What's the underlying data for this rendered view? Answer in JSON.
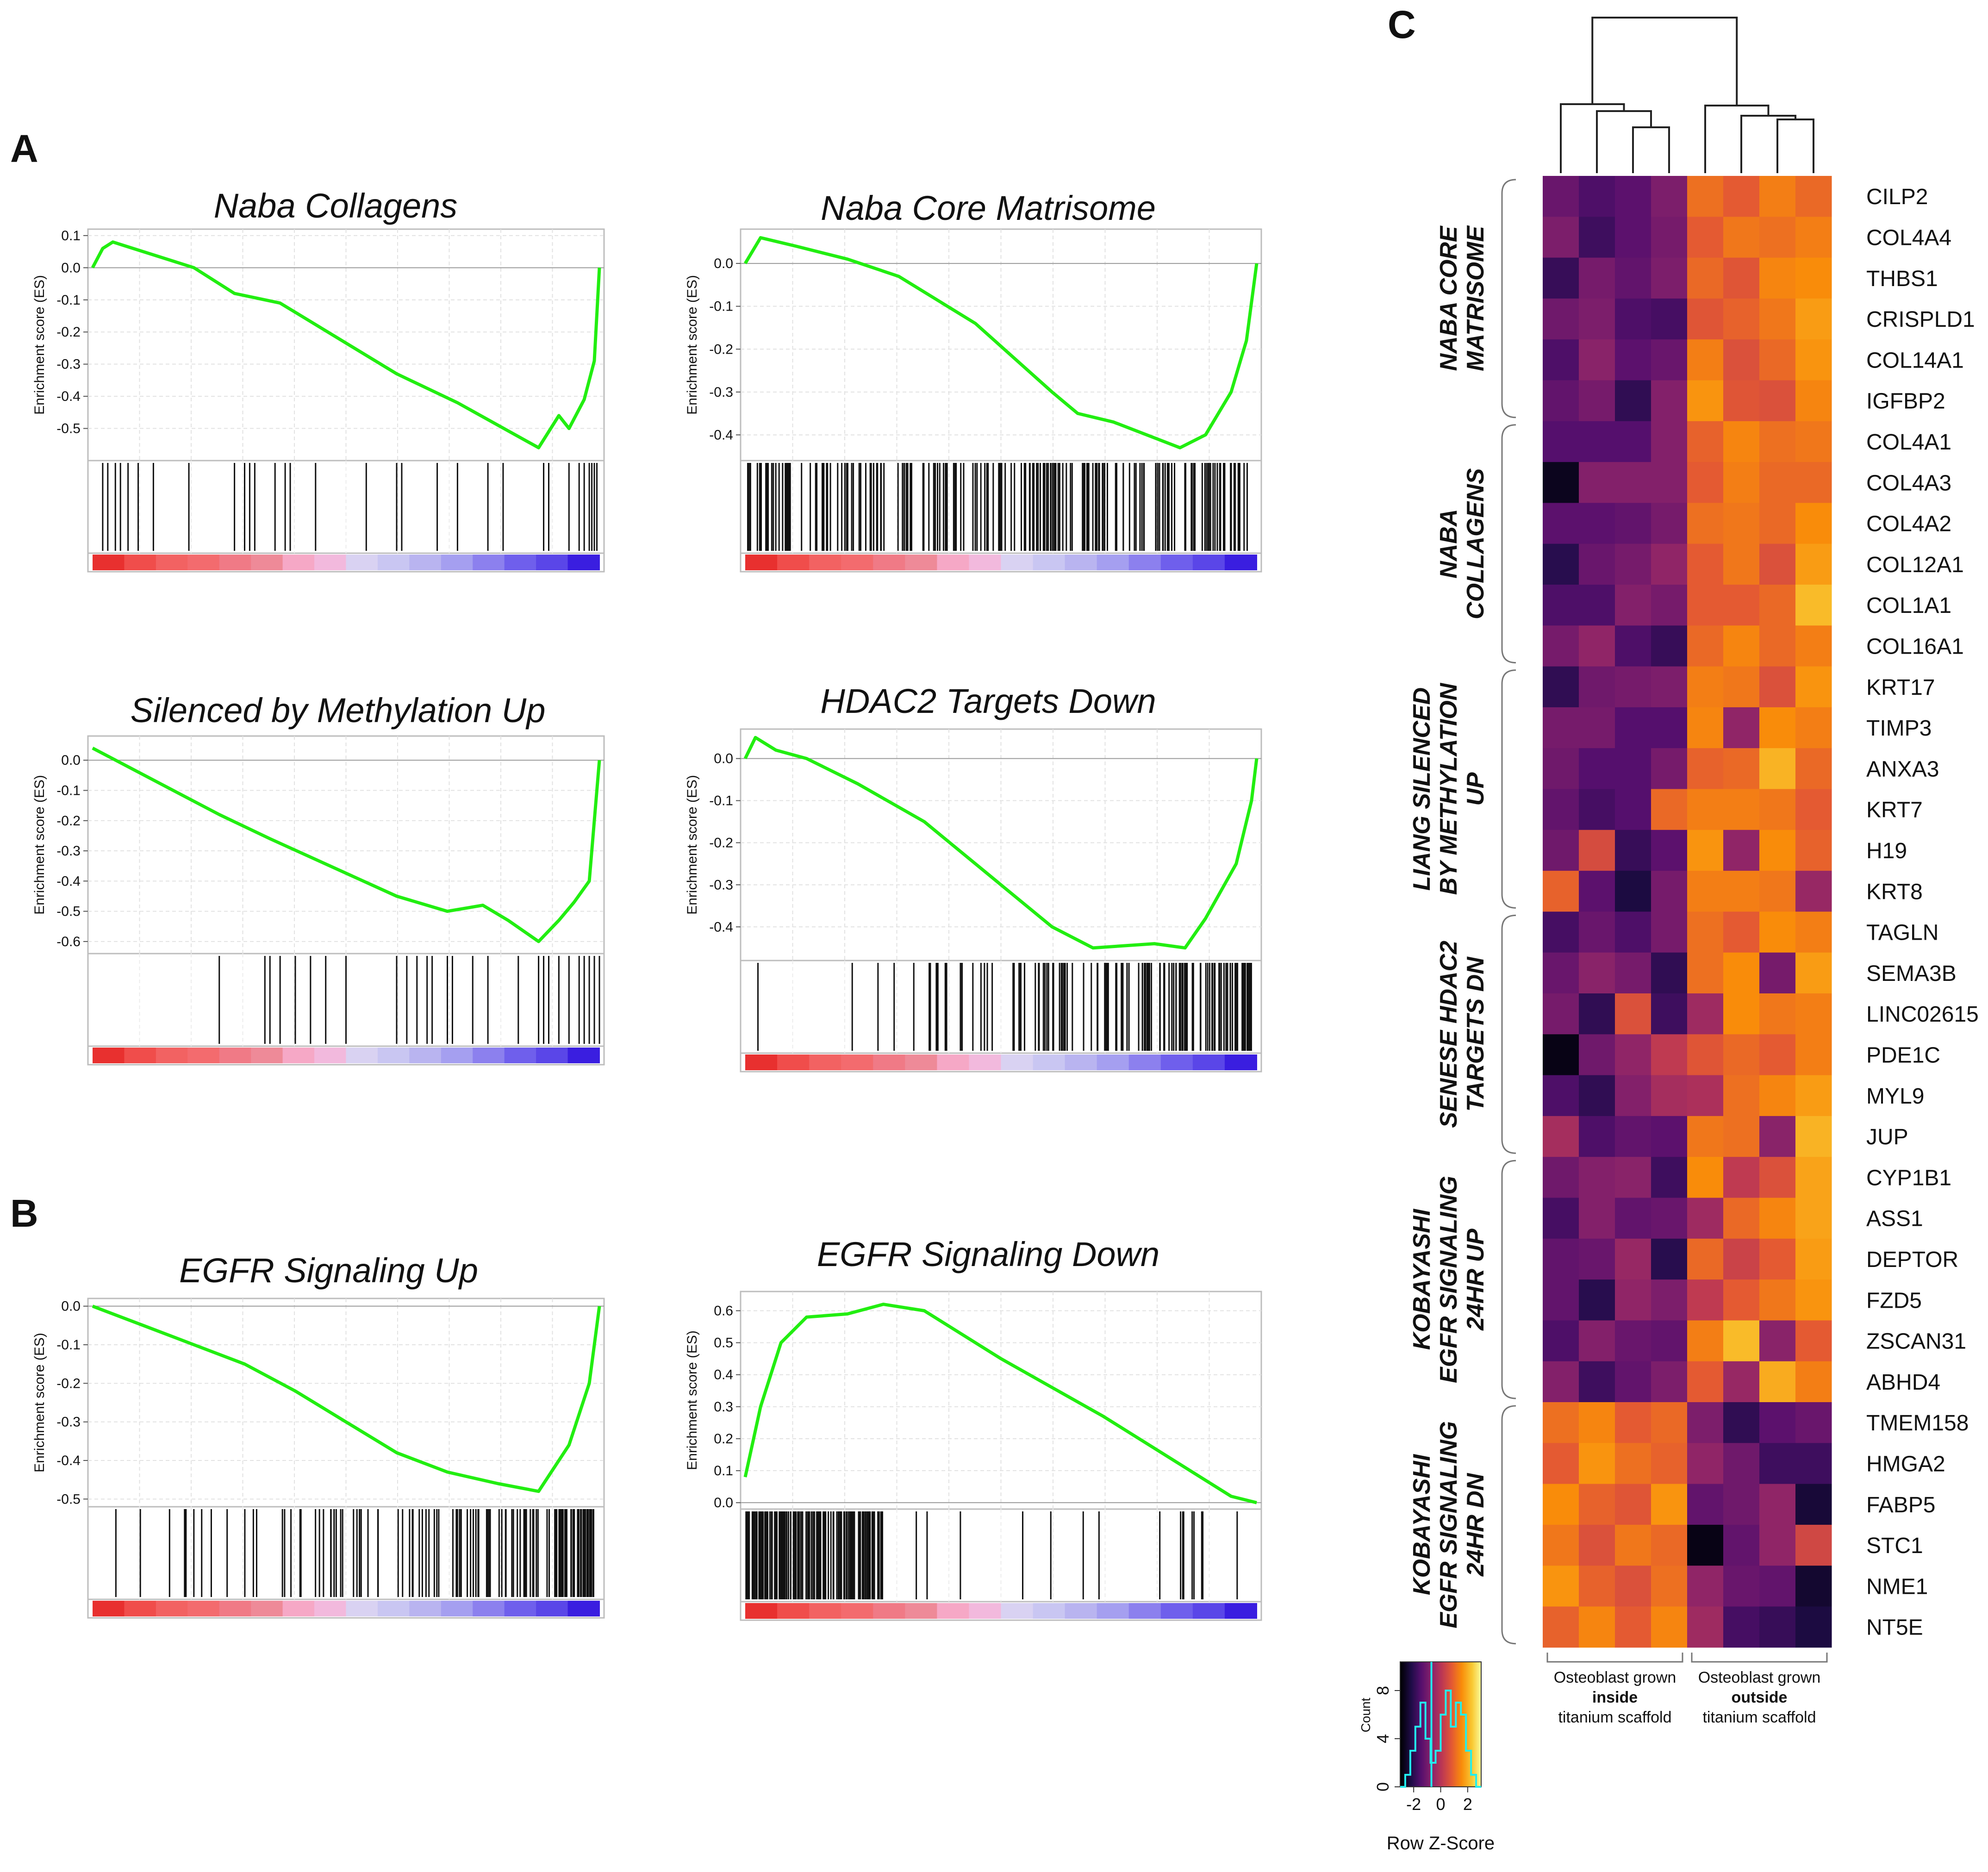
{
  "panel_labels": {
    "A": "A",
    "B": "B",
    "C": "C"
  },
  "gsea_common": {
    "ylabel": "Enrichment score (ES)",
    "curve_color": "#22ee11"
  },
  "chart_data": [
    {
      "type": "line",
      "id": "naba-collagens",
      "panel": "A",
      "title": "Naba Collagens",
      "ylabel": "Enrichment score (ES)",
      "ylim": [
        -0.6,
        0.12
      ],
      "yticks": [
        "0.1",
        "0.0",
        "-0.1",
        "-0.2",
        "-0.3",
        "-0.4",
        "-0.5"
      ],
      "curve": [
        [
          0,
          0
        ],
        [
          0.02,
          0.06
        ],
        [
          0.04,
          0.08
        ],
        [
          0.2,
          0.0
        ],
        [
          0.28,
          -0.08
        ],
        [
          0.37,
          -0.11
        ],
        [
          0.6,
          -0.33
        ],
        [
          0.72,
          -0.42
        ],
        [
          0.88,
          -0.56
        ],
        [
          0.92,
          -0.46
        ],
        [
          0.94,
          -0.5
        ],
        [
          0.97,
          -0.41
        ],
        [
          0.99,
          -0.29
        ],
        [
          1.0,
          0
        ]
      ],
      "hits": [
        0.02,
        0.03,
        0.045,
        0.055,
        0.07,
        0.09,
        0.12,
        0.19,
        0.28,
        0.3,
        0.31,
        0.32,
        0.36,
        0.38,
        0.39,
        0.44,
        0.54,
        0.6,
        0.61,
        0.68,
        0.72,
        0.78,
        0.81,
        0.89,
        0.9,
        0.94,
        0.96,
        0.97,
        0.98,
        0.985,
        0.99,
        0.995
      ]
    },
    {
      "type": "line",
      "id": "naba-core-matrisome",
      "panel": "A",
      "title": "Naba Core Matrisome",
      "ylabel": "Enrichment score (ES)",
      "ylim": [
        -0.46,
        0.08
      ],
      "yticks": [
        "0.0",
        "-0.1",
        "-0.2",
        "-0.3",
        "-0.4"
      ],
      "curve": [
        [
          0,
          0
        ],
        [
          0.03,
          0.06
        ],
        [
          0.1,
          0.04
        ],
        [
          0.2,
          0.01
        ],
        [
          0.3,
          -0.03
        ],
        [
          0.45,
          -0.14
        ],
        [
          0.6,
          -0.3
        ],
        [
          0.65,
          -0.35
        ],
        [
          0.72,
          -0.37
        ],
        [
          0.85,
          -0.43
        ],
        [
          0.9,
          -0.4
        ],
        [
          0.95,
          -0.3
        ],
        [
          0.98,
          -0.18
        ],
        [
          1.0,
          0
        ]
      ],
      "hits_density": "dense"
    },
    {
      "type": "line",
      "id": "silenced-by-methylation-up",
      "panel": "A",
      "title": "Silenced by Methylation Up",
      "ylabel": "Enrichment score (ES)",
      "ylim": [
        -0.64,
        0.08
      ],
      "yticks": [
        "0.0",
        "-0.1",
        "-0.2",
        "-0.3",
        "-0.4",
        "-0.5",
        "-0.6"
      ],
      "curve": [
        [
          0,
          0.04
        ],
        [
          0.25,
          -0.18
        ],
        [
          0.35,
          -0.26
        ],
        [
          0.6,
          -0.45
        ],
        [
          0.7,
          -0.5
        ],
        [
          0.77,
          -0.48
        ],
        [
          0.82,
          -0.53
        ],
        [
          0.88,
          -0.6
        ],
        [
          0.92,
          -0.53
        ],
        [
          0.95,
          -0.47
        ],
        [
          0.98,
          -0.4
        ],
        [
          0.99,
          -0.2
        ],
        [
          1.0,
          0
        ]
      ],
      "hits": [
        0.25,
        0.34,
        0.35,
        0.37,
        0.4,
        0.43,
        0.46,
        0.5,
        0.6,
        0.62,
        0.64,
        0.66,
        0.67,
        0.7,
        0.71,
        0.75,
        0.78,
        0.84,
        0.88,
        0.89,
        0.9,
        0.92,
        0.94,
        0.96,
        0.97,
        0.98,
        0.99,
        1.0
      ]
    },
    {
      "type": "line",
      "id": "hdac2-targets-down",
      "panel": "A",
      "title": "HDAC2 Targets Down",
      "ylabel": "Enrichment score (ES)",
      "ylim": [
        -0.48,
        0.07
      ],
      "yticks": [
        "0.0",
        "-0.1",
        "-0.2",
        "-0.3",
        "-0.4"
      ],
      "curve": [
        [
          0,
          0
        ],
        [
          0.02,
          0.05
        ],
        [
          0.06,
          0.02
        ],
        [
          0.12,
          0.0
        ],
        [
          0.22,
          -0.06
        ],
        [
          0.35,
          -0.15
        ],
        [
          0.5,
          -0.3
        ],
        [
          0.6,
          -0.4
        ],
        [
          0.68,
          -0.45
        ],
        [
          0.8,
          -0.44
        ],
        [
          0.86,
          -0.45
        ],
        [
          0.9,
          -0.38
        ],
        [
          0.96,
          -0.25
        ],
        [
          0.99,
          -0.1
        ],
        [
          1.0,
          0
        ]
      ],
      "hits_density": "medium"
    },
    {
      "type": "line",
      "id": "egfr-signaling-up",
      "panel": "B",
      "title": "EGFR Signaling Up",
      "ylabel": "Enrichment score (ES)",
      "ylim": [
        -0.52,
        0.02
      ],
      "yticks": [
        "0.0",
        "-0.1",
        "-0.2",
        "-0.3",
        "-0.4",
        "-0.5"
      ],
      "curve": [
        [
          0,
          0
        ],
        [
          0.1,
          -0.05
        ],
        [
          0.2,
          -0.1
        ],
        [
          0.3,
          -0.15
        ],
        [
          0.4,
          -0.22
        ],
        [
          0.5,
          -0.3
        ],
        [
          0.6,
          -0.38
        ],
        [
          0.7,
          -0.43
        ],
        [
          0.8,
          -0.46
        ],
        [
          0.88,
          -0.48
        ],
        [
          0.9,
          -0.44
        ],
        [
          0.94,
          -0.36
        ],
        [
          0.98,
          -0.2
        ],
        [
          1.0,
          0
        ]
      ],
      "hits_density": "medium"
    },
    {
      "type": "line",
      "id": "egfr-signaling-down",
      "panel": "B",
      "title": "EGFR Signaling Down",
      "ylabel": "Enrichment score (ES)",
      "ylim": [
        -0.02,
        0.66
      ],
      "yticks": [
        "0.6",
        "0.5",
        "0.4",
        "0.3",
        "0.2",
        "0.1",
        "0.0"
      ],
      "curve": [
        [
          0,
          0.08
        ],
        [
          0.03,
          0.3
        ],
        [
          0.07,
          0.5
        ],
        [
          0.12,
          0.58
        ],
        [
          0.2,
          0.59
        ],
        [
          0.27,
          0.62
        ],
        [
          0.35,
          0.6
        ],
        [
          0.5,
          0.45
        ],
        [
          0.7,
          0.27
        ],
        [
          0.85,
          0.12
        ],
        [
          0.95,
          0.02
        ],
        [
          1.0,
          0
        ]
      ],
      "hits_density": "dense-left"
    }
  ],
  "heatmap": {
    "genes": [
      "CILP2",
      "COL4A4",
      "THBS1",
      "CRISPLD1",
      "COL14A1",
      "IGFBP2",
      "COL4A1",
      "COL4A3",
      "COL4A2",
      "COL12A1",
      "COL1A1",
      "COL16A1",
      "KRT17",
      "TIMP3",
      "ANXA3",
      "KRT7",
      "H19",
      "KRT8",
      "TAGLN",
      "SEMA3B",
      "LINC02615",
      "PDE1C",
      "MYL9",
      "JUP",
      "CYP1B1",
      "ASS1",
      "DEPTOR",
      "FZD5",
      "ZSCAN31",
      "ABHD4",
      "TMEM158",
      "HMGA2",
      "FABP5",
      "STC1",
      "NME1",
      "NT5E"
    ],
    "groups": [
      "NABA CORE\nMATRISOME",
      "NABA\nCOLLAGENS",
      "LIANG SILENCED\nBY METHYLATION\nUP",
      "SENESE HDAC2\nTARGETS DN",
      "KOBAYASHI\nEGFR SIGNALING\n24HR UP",
      "KOBAYASHI\nEGFR SIGNALING\n24HR DN"
    ],
    "group_sizes": [
      6,
      6,
      6,
      6,
      6,
      6
    ],
    "column_groups": [
      {
        "line1": "Osteoblast grown",
        "line2": "inside",
        "line3": "titanium scaffold"
      },
      {
        "line1": "Osteoblast grown",
        "line2": "outside",
        "line3": "titanium scaffold"
      }
    ],
    "zscores": [
      [
        -1.2,
        -1.6,
        -1.4,
        -0.9,
        1.1,
        0.8,
        1.3,
        1.0
      ],
      [
        -0.9,
        -1.8,
        -1.4,
        -1.0,
        0.8,
        1.2,
        1.1,
        1.3
      ],
      [
        -1.9,
        -1.0,
        -1.3,
        -0.9,
        1.0,
        0.7,
        1.4,
        1.5
      ],
      [
        -1.1,
        -0.9,
        -1.6,
        -1.7,
        0.7,
        0.9,
        1.2,
        1.7
      ],
      [
        -1.6,
        -0.7,
        -1.4,
        -1.2,
        1.3,
        0.6,
        1.0,
        1.6
      ],
      [
        -1.3,
        -1.0,
        -2.0,
        -0.8,
        1.6,
        0.7,
        0.6,
        1.4
      ],
      [
        -1.5,
        -1.5,
        -1.5,
        -0.8,
        0.9,
        1.4,
        1.1,
        1.2
      ],
      [
        -2.7,
        -0.8,
        -0.8,
        -0.8,
        0.8,
        1.3,
        1.0,
        1.0
      ],
      [
        -1.4,
        -1.4,
        -1.3,
        -1.0,
        1.1,
        1.2,
        1.0,
        1.5
      ],
      [
        -2.1,
        -1.2,
        -1.0,
        -0.6,
        0.8,
        1.2,
        0.6,
        1.7
      ],
      [
        -1.6,
        -1.6,
        -0.8,
        -1.0,
        0.8,
        0.8,
        1.0,
        2.1
      ],
      [
        -1.0,
        -0.6,
        -1.6,
        -1.9,
        1.0,
        1.4,
        1.0,
        1.3
      ],
      [
        -2.0,
        -1.1,
        -1.0,
        -0.9,
        1.3,
        1.2,
        0.6,
        1.6
      ],
      [
        -1.0,
        -1.0,
        -1.5,
        -1.5,
        1.4,
        -0.6,
        1.5,
        1.3
      ],
      [
        -1.1,
        -1.5,
        -1.5,
        -1.0,
        0.9,
        1.0,
        2.0,
        1.0
      ],
      [
        -1.3,
        -1.7,
        -1.5,
        1.0,
        1.3,
        1.3,
        1.2,
        0.8
      ],
      [
        -1.1,
        0.5,
        -1.9,
        -1.4,
        1.6,
        -0.6,
        1.5,
        0.9
      ],
      [
        0.9,
        -1.4,
        -2.3,
        -1.0,
        1.3,
        1.3,
        1.2,
        -0.5
      ],
      [
        -1.7,
        -1.2,
        -1.6,
        -1.0,
        1.1,
        0.8,
        1.5,
        1.3
      ],
      [
        -1.2,
        -0.7,
        -1.0,
        -2.0,
        1.1,
        1.5,
        -1.0,
        1.7
      ],
      [
        -1.0,
        -2.0,
        0.6,
        -1.8,
        -0.4,
        1.5,
        1.2,
        1.3
      ],
      [
        -2.8,
        -1.1,
        -0.6,
        0.1,
        0.7,
        1.0,
        0.8,
        1.3
      ],
      [
        -1.6,
        -2.0,
        -0.8,
        -0.3,
        -0.2,
        1.1,
        1.4,
        1.7
      ],
      [
        -0.3,
        -1.6,
        -1.3,
        -1.4,
        1.2,
        1.1,
        -0.7,
        2.0
      ],
      [
        -1.1,
        -0.8,
        -0.7,
        -1.8,
        1.5,
        0.1,
        0.6,
        1.8
      ],
      [
        -1.7,
        -0.8,
        -1.3,
        -1.2,
        -0.4,
        1.0,
        1.4,
        1.8
      ],
      [
        -1.3,
        -1.2,
        -0.5,
        -2.1,
        1.0,
        0.3,
        0.8,
        1.7
      ],
      [
        -1.3,
        -2.1,
        -0.6,
        -0.9,
        0.1,
        0.8,
        1.2,
        1.6
      ],
      [
        -1.6,
        -0.8,
        -1.2,
        -1.3,
        1.3,
        2.1,
        -0.7,
        0.8
      ],
      [
        -0.8,
        -1.8,
        -1.3,
        -0.9,
        0.8,
        -0.5,
        1.9,
        1.3
      ],
      [
        1.1,
        1.4,
        0.8,
        1.0,
        -0.9,
        -2.0,
        -1.4,
        -1.2
      ],
      [
        0.8,
        1.6,
        1.1,
        0.9,
        -0.6,
        -1.1,
        -1.8,
        -1.8
      ],
      [
        1.5,
        0.9,
        0.7,
        1.6,
        -1.3,
        -1.1,
        -0.6,
        -2.4
      ],
      [
        1.2,
        0.6,
        1.2,
        1.0,
        -2.8,
        -1.3,
        -0.6,
        0.4
      ],
      [
        1.6,
        0.9,
        0.6,
        1.1,
        -0.6,
        -1.2,
        -1.3,
        -2.5
      ],
      [
        0.9,
        1.4,
        0.8,
        1.4,
        -0.4,
        -1.7,
        -1.9,
        -2.3
      ]
    ]
  },
  "color_key": {
    "title": "Row Z-Score",
    "ylabel": "Count",
    "xticks": [
      "-2",
      "0",
      "2"
    ],
    "yticks": [
      "0",
      "4",
      "8"
    ],
    "hist_color": "#22eeee",
    "hist_counts": [
      0,
      1,
      3,
      5,
      7,
      4,
      2,
      3,
      6,
      8,
      5,
      7,
      6,
      3,
      1,
      0
    ]
  }
}
